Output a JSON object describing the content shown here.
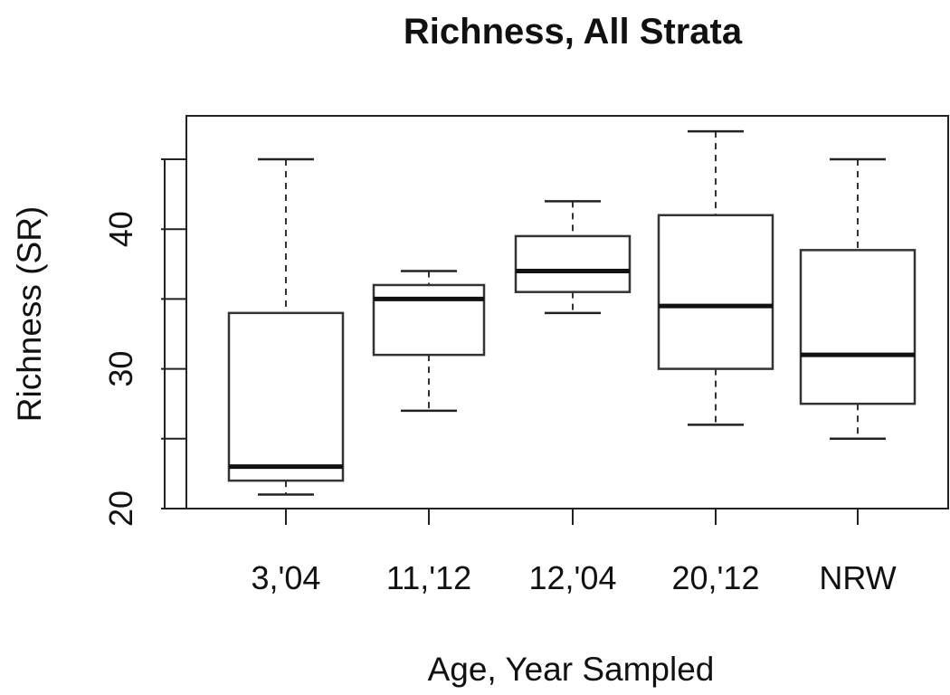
{
  "chart_data": {
    "type": "boxplot",
    "title": "Richness, All Strata",
    "xlabel": "Age, Year Sampled",
    "ylabel": "Richness (SR)",
    "ylim": [
      20,
      46.2
    ],
    "yticks": [
      20,
      30,
      40
    ],
    "extra_yticks": [
      25,
      35,
      45
    ],
    "grid": false,
    "legend": "none",
    "categories": [
      "3,'04",
      "11,'12",
      "12,'04",
      "20,'12",
      "NRW"
    ],
    "boxes": [
      {
        "category": "3,'04",
        "min": 21,
        "q1": 22,
        "median": 23,
        "q3": 34,
        "max": 45
      },
      {
        "category": "11,'12",
        "min": 27,
        "q1": 31,
        "median": 35,
        "q3": 36,
        "max": 37
      },
      {
        "category": "12,'04",
        "min": 34,
        "q1": 35.5,
        "median": 37,
        "q3": 39.5,
        "max": 42
      },
      {
        "category": "20,'12",
        "min": 26,
        "q1": 30,
        "median": 34.5,
        "q3": 41,
        "max": 47
      },
      {
        "category": "NRW",
        "min": 25,
        "q1": 27.5,
        "median": 31,
        "q3": 38.5,
        "max": 45
      }
    ]
  }
}
